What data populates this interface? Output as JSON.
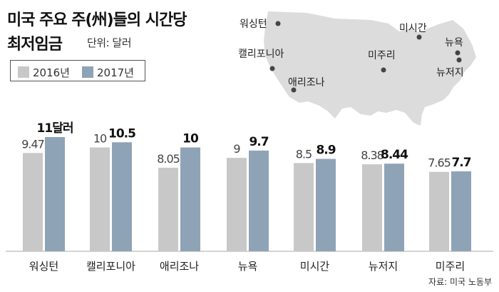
{
  "title": {
    "line1": "미국 주요 주(州)들의 시간당",
    "line2": "최저임금",
    "unit": "단위: 달러"
  },
  "legend": [
    {
      "label": "2016년",
      "color": "#c8c8c8"
    },
    {
      "label": "2017년",
      "color": "#8fa3b6"
    }
  ],
  "source": "자료: 미국 노동부",
  "map": {
    "color": "#dcdcdc",
    "states": [
      "워싱턴",
      "캘리포니아",
      "애리조나",
      "미주리",
      "미시간",
      "뉴욕",
      "뉴저지"
    ]
  },
  "chart_data": {
    "type": "bar",
    "categories": [
      "워싱턴",
      "캘리포니아",
      "애리조나",
      "뉴욕",
      "미시간",
      "뉴저지",
      "미주리"
    ],
    "series": [
      {
        "name": "2016년",
        "values": [
          9.47,
          10,
          8.05,
          9,
          8.5,
          8.38,
          7.65
        ],
        "labels": [
          "9.47",
          "10",
          "8.05",
          "9",
          "8.5",
          "8.38",
          "7.65"
        ]
      },
      {
        "name": "2017년",
        "values": [
          11,
          10.5,
          10,
          9.7,
          8.9,
          8.44,
          7.7
        ],
        "labels": [
          "11달러",
          "10.5",
          "10",
          "9.7",
          "8.9",
          "8.44",
          "7.7"
        ]
      }
    ],
    "ylim": [
      0,
      11
    ],
    "grid": false,
    "legend_position": "top-left"
  }
}
